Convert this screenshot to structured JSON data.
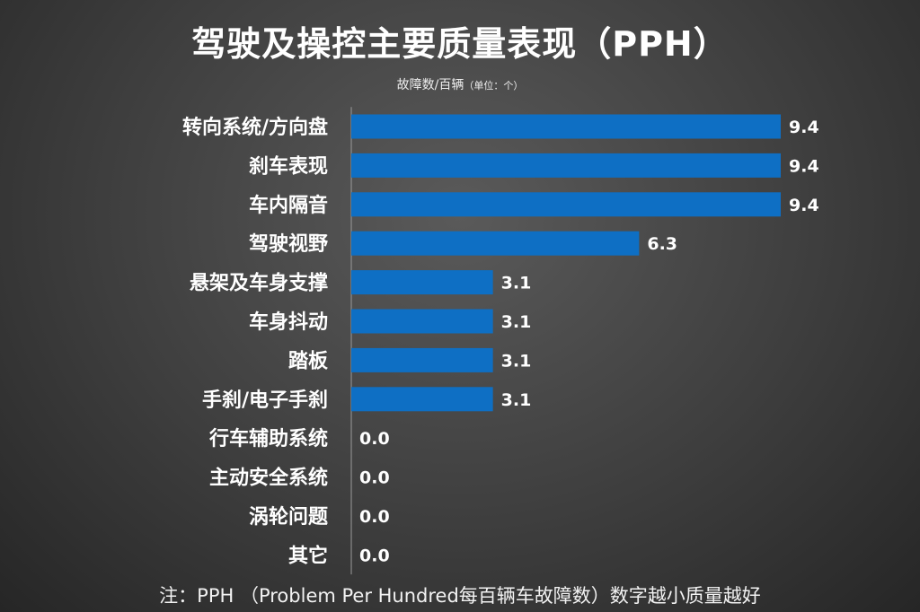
{
  "title": "驾驶及操控主要质量表现（PPH）",
  "subtitle": "故障数/百辆",
  "unit_note": "（单位：个）",
  "footnote": "注：PPH （Problem Per Hundred每百辆车故障数）数字越小质量越好",
  "colors": {
    "bar": "#0e6fc4",
    "text": "#ffffff"
  },
  "chart_data": {
    "type": "bar",
    "orientation": "horizontal",
    "categories": [
      "转向系统/方向盘",
      "刹车表现",
      "车内隔音",
      "驾驶视野",
      "悬架及车身支撑",
      "车身抖动",
      "踏板",
      "手刹/电子手刹",
      "行车辅助系统",
      "主动安全系统",
      "涡轮问题",
      "其它"
    ],
    "values": [
      9.4,
      9.4,
      9.4,
      6.3,
      3.1,
      3.1,
      3.1,
      3.1,
      0.0,
      0.0,
      0.0,
      0.0
    ],
    "value_labels": [
      "9.4",
      "9.4",
      "9.4",
      "6.3",
      "3.1",
      "3.1",
      "3.1",
      "3.1",
      "0.0",
      "0.0",
      "0.0",
      "0.0"
    ],
    "xlim": [
      0,
      9.4
    ],
    "grid": false,
    "legend": "none"
  }
}
